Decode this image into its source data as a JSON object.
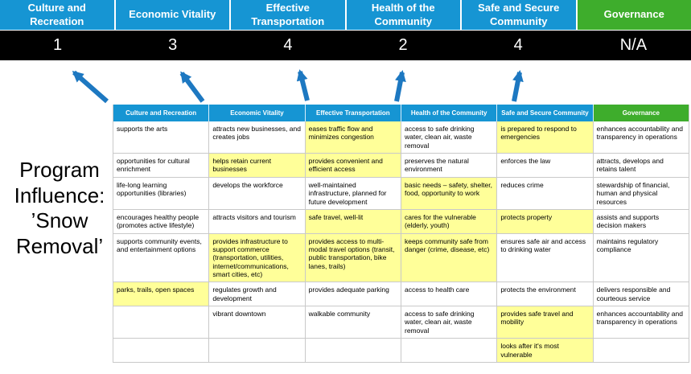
{
  "colors": {
    "header_blue": "#1695d3",
    "header_green": "#3ead2c",
    "score_band_bg": "#000000",
    "score_text": "#ffffff",
    "highlight_yellow": "#ffff99",
    "arrow_blue": "#1d78c1"
  },
  "program_label": "Program Influence: ’Snow Removal’",
  "scoreboard": {
    "columns": [
      {
        "label": "Culture and Recreation",
        "score": "1"
      },
      {
        "label": "Economic Vitality",
        "score": "3"
      },
      {
        "label": "Effective Transportation",
        "score": "4"
      },
      {
        "label": "Health of the Community",
        "score": "2"
      },
      {
        "label": "Safe and Secure Community",
        "score": "4"
      },
      {
        "label": "Governance",
        "score": "N/A"
      }
    ]
  },
  "arrows": [
    {
      "points_to": "Culture and Recreation"
    },
    {
      "points_to": "Economic Vitality"
    },
    {
      "points_to": "Effective Transportation"
    },
    {
      "points_to": "Health of the Community"
    },
    {
      "points_to": "Safe and Secure Community"
    }
  ],
  "matrix": {
    "headers": [
      {
        "label": "Culture and Recreation",
        "style": "blue"
      },
      {
        "label": "Economic Vitality",
        "style": "blue"
      },
      {
        "label": "Effective Transportation",
        "style": "blue"
      },
      {
        "label": "Health of the Community",
        "style": "blue"
      },
      {
        "label": "Safe and Secure Community",
        "style": "blue"
      },
      {
        "label": "Governance",
        "style": "green"
      }
    ],
    "rows": [
      [
        {
          "text": "supports the arts",
          "highlight": false
        },
        {
          "text": "attracts new businesses, and creates jobs",
          "highlight": false
        },
        {
          "text": "eases traffic flow and minimizes congestion",
          "highlight": true
        },
        {
          "text": "access to safe drinking water, clean air, waste removal",
          "highlight": false
        },
        {
          "text": "is prepared to respond to emergencies",
          "highlight": true
        },
        {
          "text": "enhances accountability and transparency in operations",
          "highlight": false
        }
      ],
      [
        {
          "text": "opportunities for cultural enrichment",
          "highlight": false
        },
        {
          "text": "helps retain current businesses",
          "highlight": true
        },
        {
          "text": "provides convenient and efficient access",
          "highlight": true
        },
        {
          "text": "preserves the natural environment",
          "highlight": false
        },
        {
          "text": "enforces the law",
          "highlight": false
        },
        {
          "text": "attracts, develops and retains talent",
          "highlight": false
        }
      ],
      [
        {
          "text": "life-long learning opportunities (libraries)",
          "highlight": false
        },
        {
          "text": "develops the workforce",
          "highlight": false
        },
        {
          "text": "well-maintained infrastructure, planned for future development",
          "highlight": false
        },
        {
          "text": "basic needs – safety, shelter, food, opportunity to work",
          "highlight": true
        },
        {
          "text": "reduces crime",
          "highlight": false
        },
        {
          "text": "stewardship of financial, human and physical resources",
          "highlight": false
        }
      ],
      [
        {
          "text": "encourages healthy people (promotes active lifestyle)",
          "highlight": false
        },
        {
          "text": "attracts visitors and tourism",
          "highlight": false
        },
        {
          "text": "safe travel, well-lit",
          "highlight": true
        },
        {
          "text": "cares for the vulnerable (elderly, youth)",
          "highlight": true
        },
        {
          "text": "protects property",
          "highlight": true
        },
        {
          "text": "assists and supports decision makers",
          "highlight": false
        }
      ],
      [
        {
          "text": "supports community events, and entertainment options",
          "highlight": false
        },
        {
          "text": "provides infrastructure to support commerce (transportation, utilities, internet/communications, smart cities, etc)",
          "highlight": true
        },
        {
          "text": "provides access to multi-modal travel options (transit, public transportation, bike lanes, trails)",
          "highlight": true
        },
        {
          "text": "keeps community safe from danger (crime, disease, etc)",
          "highlight": true
        },
        {
          "text": "ensures safe air and access to drinking water",
          "highlight": false
        },
        {
          "text": "maintains regulatory compliance",
          "highlight": false
        }
      ],
      [
        {
          "text": "parks, trails, open spaces",
          "highlight": true
        },
        {
          "text": "regulates growth and development",
          "highlight": false
        },
        {
          "text": "provides adequate parking",
          "highlight": false
        },
        {
          "text": "access to health care",
          "highlight": false
        },
        {
          "text": "protects the environment",
          "highlight": false
        },
        {
          "text": "delivers responsible and courteous service",
          "highlight": false
        }
      ],
      [
        {
          "text": "",
          "highlight": false
        },
        {
          "text": "vibrant downtown",
          "highlight": false
        },
        {
          "text": "walkable community",
          "highlight": false
        },
        {
          "text": "access to safe drinking water, clean air, waste removal",
          "highlight": false
        },
        {
          "text": "provides safe travel and mobility",
          "highlight": true
        },
        {
          "text": "enhances accountability and transparency in operations",
          "highlight": false
        }
      ],
      [
        {
          "text": "",
          "highlight": false
        },
        {
          "text": "",
          "highlight": false
        },
        {
          "text": "",
          "highlight": false
        },
        {
          "text": "",
          "highlight": false
        },
        {
          "text": "looks after it's most vulnerable",
          "highlight": true
        },
        {
          "text": "",
          "highlight": false
        }
      ]
    ]
  }
}
